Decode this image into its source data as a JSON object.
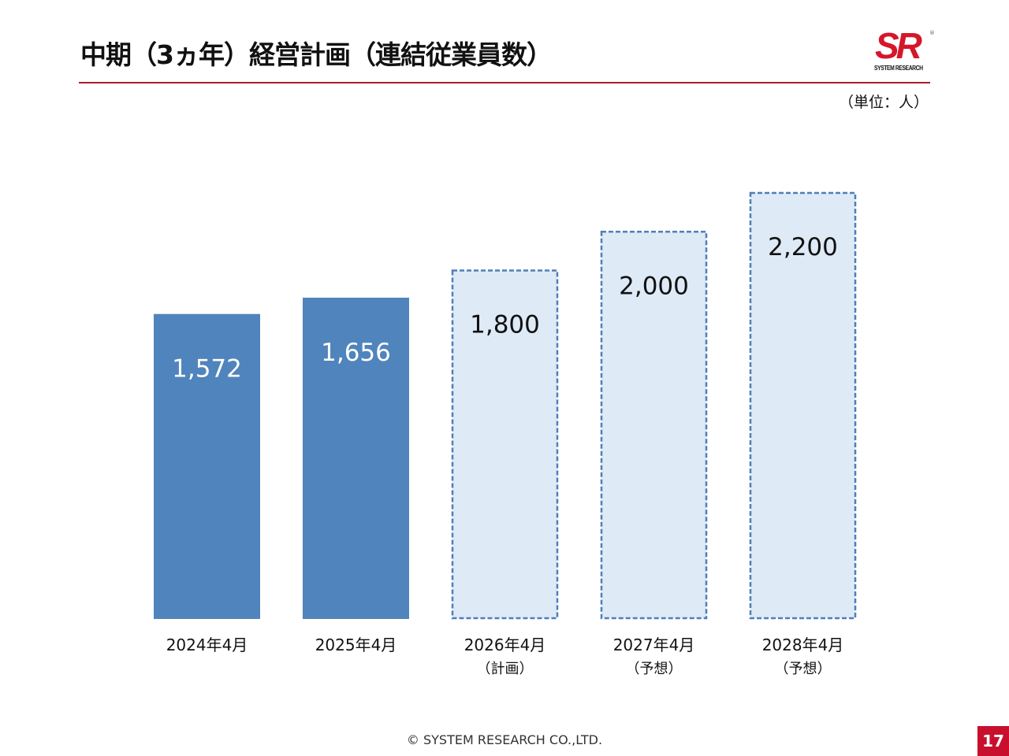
{
  "header": {
    "title": "中期（3ヵ年）経営計画（連結従業員数）",
    "unit": "（単位：人）"
  },
  "logo": {
    "mark": "SR",
    "name": "SYSTEM RESEARCH",
    "registered": "®"
  },
  "footer": {
    "copyright": "© SYSTEM RESEARCH CO.,LTD.",
    "page_number": "17"
  },
  "colors": {
    "accent": "#a3202f",
    "actual_bar": "#5084bd",
    "plan_fill": "#deeaf6",
    "plan_border": "#4f7fb8",
    "page_badge": "#c8102e"
  },
  "chart_data": {
    "type": "bar",
    "title": "",
    "xlabel": "",
    "ylabel": "",
    "ylim": [
      0,
      2200
    ],
    "grid": false,
    "categories": [
      {
        "label": "2024年4月",
        "sub": ""
      },
      {
        "label": "2025年4月",
        "sub": ""
      },
      {
        "label": "2026年4月",
        "sub": "（計画）"
      },
      {
        "label": "2027年4月",
        "sub": "（予想）"
      },
      {
        "label": "2028年4月",
        "sub": "（予想）"
      }
    ],
    "values": [
      1572,
      1656,
      1800,
      2000,
      2200
    ],
    "value_labels": [
      "1,572",
      "1,656",
      "1,800",
      "2,000",
      "2,200"
    ],
    "styles": [
      "actual",
      "actual",
      "plan",
      "plan",
      "plan"
    ]
  }
}
